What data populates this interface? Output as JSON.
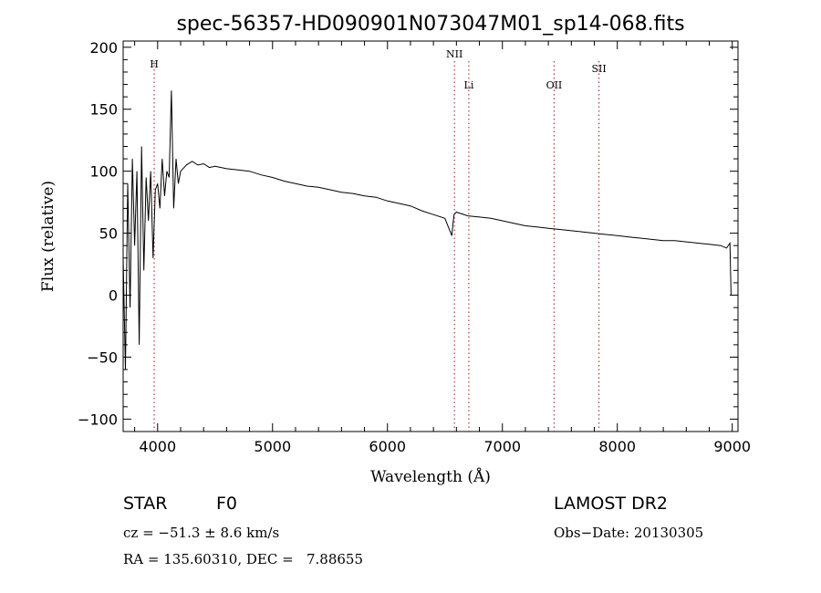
{
  "chart_data": {
    "type": "line",
    "title": "spec-56357-HD090901N073047M01_sp14-068.fits",
    "xlabel": "Wavelength (Å)",
    "ylabel": "Flux (relative)",
    "xlim": [
      3700,
      9050
    ],
    "ylim": [
      -110,
      205
    ],
    "xticks": [
      4000,
      5000,
      6000,
      7000,
      8000,
      9000
    ],
    "yticks": [
      -100,
      -50,
      0,
      50,
      100,
      150,
      200
    ],
    "x_tick_labels": [
      "4000",
      "5000",
      "6000",
      "7000",
      "8000",
      "9000"
    ],
    "y_tick_labels": [
      "−100",
      "−50",
      "0",
      "50",
      "100",
      "150",
      "200"
    ],
    "grid": false,
    "line_color": "#000000",
    "marker_color": "#c0392b",
    "series": [
      {
        "x": [
          3700,
          3720,
          3740,
          3760,
          3780,
          3800,
          3820,
          3840,
          3860,
          3880,
          3900,
          3920,
          3940,
          3960,
          3980,
          4000,
          4020,
          4040,
          4060,
          4080,
          4100,
          4120,
          4140,
          4160,
          4180,
          4200,
          4250,
          4300,
          4350,
          4400,
          4450,
          4500,
          4600,
          4700,
          4800,
          4900,
          5000,
          5100,
          5200,
          5300,
          5400,
          5500,
          5600,
          5700,
          5800,
          5900,
          6000,
          6100,
          6200,
          6300,
          6400,
          6500,
          6560,
          6570,
          6580,
          6600,
          6700,
          6800,
          6900,
          7000,
          7100,
          7200,
          7300,
          7400,
          7500,
          7600,
          7700,
          7800,
          7900,
          8000,
          8100,
          8200,
          8300,
          8400,
          8500,
          8600,
          8700,
          8800,
          8900,
          8950,
          8980,
          8990,
          9000
        ],
        "y": [
          30,
          -60,
          90,
          -10,
          110,
          40,
          100,
          -40,
          120,
          20,
          95,
          60,
          100,
          30,
          85,
          90,
          70,
          110,
          80,
          100,
          95,
          165,
          70,
          110,
          90,
          100,
          105,
          108,
          105,
          106,
          103,
          104,
          102,
          101,
          100,
          97,
          95,
          92,
          90,
          88,
          87,
          85,
          83,
          82,
          80,
          79,
          76,
          74,
          72,
          68,
          65,
          62,
          48,
          58,
          65,
          67,
          64,
          63,
          62,
          60,
          58,
          56,
          55,
          54,
          53,
          52,
          51,
          50,
          49,
          48,
          47,
          46,
          45,
          44,
          44,
          43,
          42,
          41,
          40,
          38,
          42,
          0,
          0
        ]
      }
    ],
    "line_markers": [
      {
        "label": "H",
        "x": 3970
      },
      {
        "label": "NII",
        "x": 6583
      },
      {
        "label": "Li",
        "x": 6708
      },
      {
        "label": "OII",
        "x": 7450
      },
      {
        "label": "SII",
        "x": 7840
      }
    ]
  },
  "info": {
    "object_type": "STAR",
    "subclass": "F0",
    "survey": "LAMOST DR2",
    "cz": "cz = −51.3 ± 8.6 km/s",
    "obs_date": "Obs−Date: 20130305",
    "coords": "RA = 135.60310, DEC =   7.88655"
  }
}
